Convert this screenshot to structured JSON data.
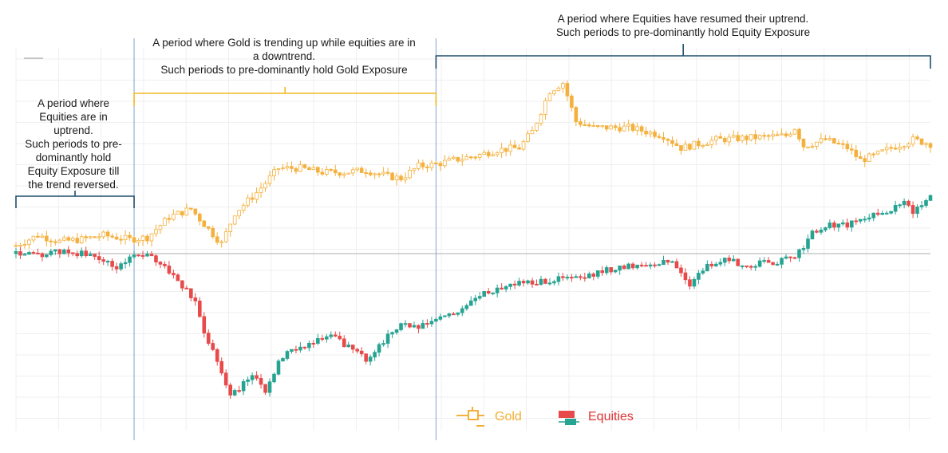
{
  "annotations": {
    "left": [
      "A period where",
      "Equities are in",
      "uptrend.",
      "Such periods to pre-",
      "dominantly hold",
      "Equity Exposure till",
      "the trend reversed."
    ],
    "middle": [
      "A period where Gold is trending up while equities are in",
      "a downtrend.",
      "Such periods to pre-dominantly hold Gold Exposure"
    ],
    "right": [
      "A period where Equities have resumed their uptrend.",
      "Such periods to pre-dominantly hold Equity Exposure"
    ]
  },
  "colors": {
    "gold": "#F4B03C",
    "gold_label": "#F2B035",
    "equity_up": "#27A392",
    "equity_down": "#E84A4A",
    "equities_label": "#E03232",
    "bracket_left": "#1F4E6A",
    "bracket_middle": "#F4B820",
    "bracket_right": "#1F4E6A",
    "divider": "#7EA6C8",
    "baseline": "#BDBDBD",
    "grid": "#EFEFEF"
  },
  "chart_data": {
    "type": "candlestick",
    "title": "",
    "xlabel": "",
    "ylabel": "",
    "x_index_range": [
      0,
      209
    ],
    "ylim": [
      -0.75,
      0.85
    ],
    "baseline": 0,
    "phase_boundaries_index": [
      27,
      96
    ],
    "grid": true,
    "legend_position": "bottom-center",
    "series": [
      {
        "name": "Gold",
        "anchors": [
          [
            0,
            0.04
          ],
          [
            5,
            0.09
          ],
          [
            10,
            0.06
          ],
          [
            15,
            0.07
          ],
          [
            20,
            0.09
          ],
          [
            26,
            0.07
          ],
          [
            30,
            0.08
          ],
          [
            35,
            0.18
          ],
          [
            40,
            0.22
          ],
          [
            44,
            0.12
          ],
          [
            47,
            0.05
          ],
          [
            50,
            0.2
          ],
          [
            55,
            0.3
          ],
          [
            60,
            0.42
          ],
          [
            65,
            0.42
          ],
          [
            70,
            0.4
          ],
          [
            75,
            0.4
          ],
          [
            80,
            0.41
          ],
          [
            85,
            0.38
          ],
          [
            88,
            0.37
          ],
          [
            92,
            0.43
          ],
          [
            96,
            0.44
          ],
          [
            100,
            0.46
          ],
          [
            105,
            0.48
          ],
          [
            110,
            0.51
          ],
          [
            115,
            0.52
          ],
          [
            118,
            0.6
          ],
          [
            122,
            0.8
          ],
          [
            125,
            0.84
          ],
          [
            128,
            0.65
          ],
          [
            132,
            0.62
          ],
          [
            140,
            0.62
          ],
          [
            148,
            0.58
          ],
          [
            152,
            0.52
          ],
          [
            160,
            0.56
          ],
          [
            168,
            0.57
          ],
          [
            176,
            0.58
          ],
          [
            178,
            0.62
          ],
          [
            180,
            0.53
          ],
          [
            185,
            0.56
          ],
          [
            190,
            0.52
          ],
          [
            193,
            0.46
          ],
          [
            196,
            0.48
          ],
          [
            200,
            0.52
          ],
          [
            205,
            0.56
          ],
          [
            209,
            0.54
          ]
        ]
      },
      {
        "name": "Equities",
        "anchors": [
          [
            0,
            0.0
          ],
          [
            5,
            -0.01
          ],
          [
            10,
            0.01
          ],
          [
            15,
            0.0
          ],
          [
            20,
            -0.03
          ],
          [
            23,
            -0.08
          ],
          [
            26,
            -0.01
          ],
          [
            30,
            -0.01
          ],
          [
            34,
            -0.06
          ],
          [
            38,
            -0.16
          ],
          [
            41,
            -0.24
          ],
          [
            43,
            -0.38
          ],
          [
            46,
            -0.52
          ],
          [
            49,
            -0.7
          ],
          [
            52,
            -0.64
          ],
          [
            55,
            -0.6
          ],
          [
            57,
            -0.68
          ],
          [
            60,
            -0.53
          ],
          [
            64,
            -0.46
          ],
          [
            68,
            -0.44
          ],
          [
            72,
            -0.4
          ],
          [
            76,
            -0.46
          ],
          [
            80,
            -0.52
          ],
          [
            84,
            -0.43
          ],
          [
            88,
            -0.34
          ],
          [
            92,
            -0.37
          ],
          [
            96,
            -0.32
          ],
          [
            100,
            -0.3
          ],
          [
            105,
            -0.22
          ],
          [
            110,
            -0.17
          ],
          [
            115,
            -0.14
          ],
          [
            120,
            -0.14
          ],
          [
            125,
            -0.12
          ],
          [
            130,
            -0.12
          ],
          [
            135,
            -0.08
          ],
          [
            140,
            -0.06
          ],
          [
            145,
            -0.05
          ],
          [
            150,
            -0.04
          ],
          [
            154,
            -0.15
          ],
          [
            158,
            -0.06
          ],
          [
            163,
            -0.03
          ],
          [
            166,
            -0.06
          ],
          [
            170,
            -0.05
          ],
          [
            174,
            -0.04
          ],
          [
            178,
            -0.02
          ],
          [
            182,
            0.1
          ],
          [
            186,
            0.14
          ],
          [
            190,
            0.14
          ],
          [
            195,
            0.18
          ],
          [
            200,
            0.22
          ],
          [
            203,
            0.25
          ],
          [
            205,
            0.2
          ],
          [
            209,
            0.3
          ]
        ]
      }
    ],
    "legend": [
      "Gold",
      "Equities"
    ]
  }
}
